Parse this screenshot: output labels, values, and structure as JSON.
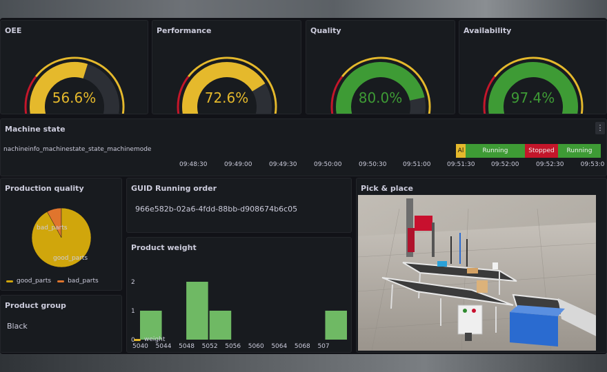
{
  "colors": {
    "yellow": "#e5b92c",
    "green": "#3e9b35",
    "red": "#c4162a",
    "orange": "#e0752d",
    "panel": "#181b1f",
    "pie_good": "#d0a60c",
    "pie_bad": "#e0752d",
    "bar": "#6fb964"
  },
  "gauges": [
    {
      "title": "OEE",
      "value": "56.6%",
      "percent": 56.6,
      "color": "#e5b92c"
    },
    {
      "title": "Performance",
      "value": "72.6%",
      "percent": 72.6,
      "color": "#e5b92c"
    },
    {
      "title": "Quality",
      "value": "80.0%",
      "percent": 80.0,
      "color": "#3e9b35"
    },
    {
      "title": "Availability",
      "value": "97.4%",
      "percent": 97.4,
      "color": "#3e9b35"
    }
  ],
  "machine_state": {
    "title": "Machine state",
    "series_label": "nachineinfo_machinestate_state_machinemode",
    "segments": [
      {
        "label": "Al",
        "state": "alarm"
      },
      {
        "label": "Running",
        "state": "running"
      },
      {
        "label": "Stopped",
        "state": "stopped"
      },
      {
        "label": "Running",
        "state": "running"
      }
    ],
    "times": [
      "09:48:30",
      "09:49:00",
      "09:49:30",
      "09:50:00",
      "09:50:30",
      "09:51:00",
      "09:51:30",
      "09:52:00",
      "09:52:30",
      "09:53:0"
    ]
  },
  "production_quality": {
    "title": "Production quality",
    "slices": [
      {
        "label": "good_parts",
        "value": 92,
        "color": "#d0a60c"
      },
      {
        "label": "bad_parts",
        "value": 8,
        "color": "#e0752d"
      }
    ],
    "legend": [
      "good_parts",
      "bad_parts"
    ]
  },
  "product_group": {
    "title": "Product group",
    "value": "Black"
  },
  "guid_order": {
    "title": "GUID Running order",
    "value": "966e582b-02a6-4fdd-88bb-d908674b6c05"
  },
  "pick_place": {
    "title": "Pick & place"
  },
  "chart_data": {
    "type": "bar",
    "title": "Product weight",
    "series": [
      {
        "name": "weight",
        "bins": [
          [
            5040,
            5044,
            1
          ],
          [
            5048,
            5052,
            2
          ],
          [
            5052,
            5056,
            1
          ],
          [
            5072,
            5076,
            1
          ]
        ]
      }
    ],
    "x_ticks": [
      "5040",
      "5044",
      "5048",
      "5052",
      "5056",
      "5060",
      "5064",
      "5068",
      "507"
    ],
    "y_ticks": [
      "0",
      "1",
      "2"
    ],
    "xlim": [
      5040,
      5076
    ],
    "ylim": [
      0,
      2
    ],
    "legend": "bottom-left",
    "grid": false
  }
}
